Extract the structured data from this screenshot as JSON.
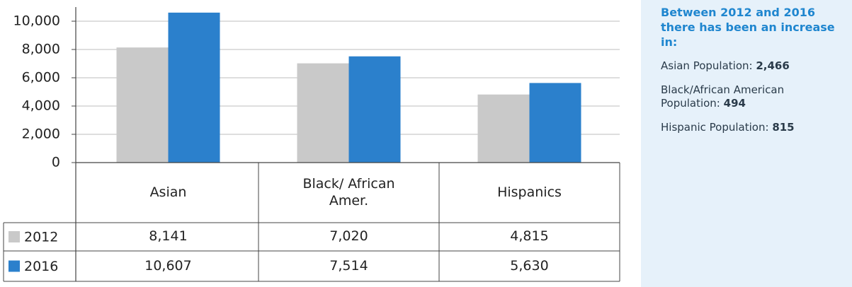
{
  "chart_data": {
    "type": "bar",
    "categories": [
      "Asian",
      "Black/ African Amer.",
      "Hispanics"
    ],
    "series": [
      {
        "name": "2012",
        "color": "#c9c9c9",
        "values": [
          8141,
          7020,
          4815
        ],
        "value_labels": [
          "8,141",
          "7,020",
          "4,815"
        ]
      },
      {
        "name": "2016",
        "color": "#2b80cc",
        "values": [
          10607,
          7514,
          5630
        ],
        "value_labels": [
          "10,607",
          "7,514",
          "5,630"
        ]
      }
    ],
    "ylim": [
      0,
      11000
    ],
    "yticks": [
      {
        "value": 0,
        "label": "0"
      },
      {
        "value": 2000,
        "label": "2,000"
      },
      {
        "value": 4000,
        "label": "4,000"
      },
      {
        "value": 6000,
        "label": "6,000"
      },
      {
        "value": 8000,
        "label": "8,000"
      },
      {
        "value": 10000,
        "label": "10,000"
      }
    ],
    "grid": true
  },
  "panel": {
    "title": "Between 2012 and 2016 there has been an increase in:",
    "items": [
      {
        "label": "Asian Population:",
        "value": "2,466"
      },
      {
        "label": "Black/African American Population:",
        "value": "494"
      },
      {
        "label": "Hispanic Population:",
        "value": "815"
      }
    ]
  }
}
